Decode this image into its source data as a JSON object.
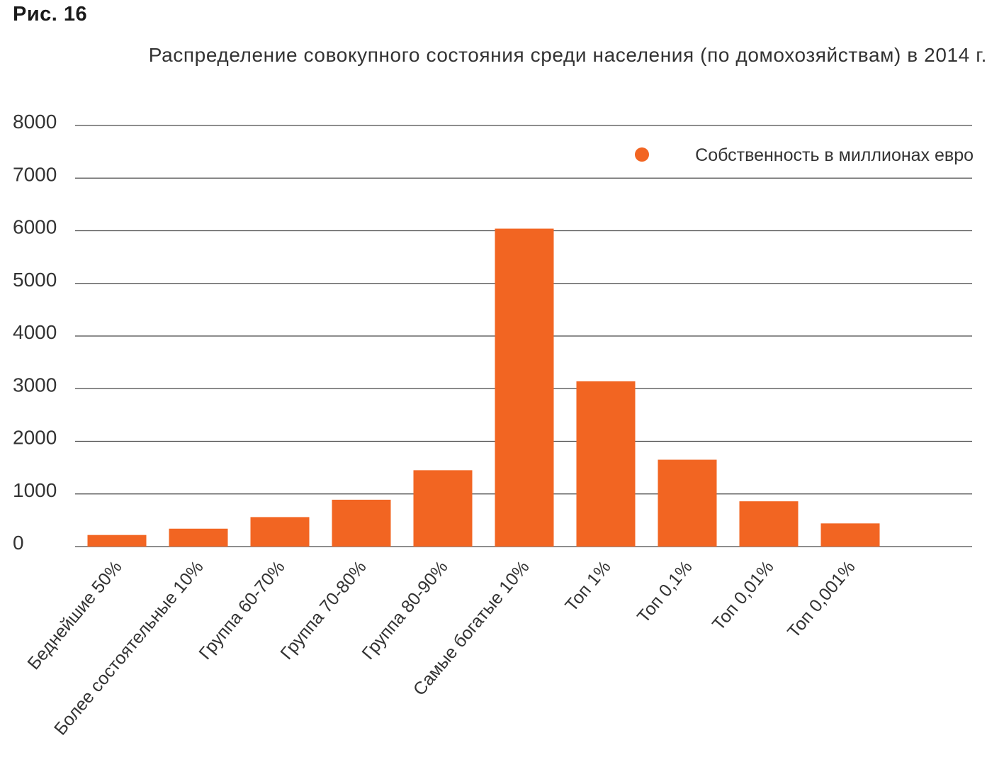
{
  "figure_label": "Рис. 16",
  "chart_data": {
    "type": "bar",
    "title": "Распределение совокупного состояния среди населения (по домохозяйствам) в 2014 г.",
    "categories": [
      "Беднейшие 50%",
      "Более состоятельные 10%",
      "Группа 60-70%",
      "Группа 70-80%",
      "Группа 80-90%",
      "Самые богатые 10%",
      "Топ 1%",
      "Топ 0,1%",
      "Топ 0,01%",
      "Топ 0,001%"
    ],
    "series": [
      {
        "name": "Собственность в миллионах евро",
        "color": "#f26522",
        "values": [
          220,
          340,
          560,
          890,
          1450,
          6040,
          3140,
          1650,
          860,
          440
        ]
      }
    ],
    "ylim": [
      0,
      8000
    ],
    "yticks": [
      0,
      1000,
      2000,
      3000,
      4000,
      5000,
      6000,
      7000,
      8000
    ],
    "grid": true,
    "legend_position": "top-right"
  }
}
